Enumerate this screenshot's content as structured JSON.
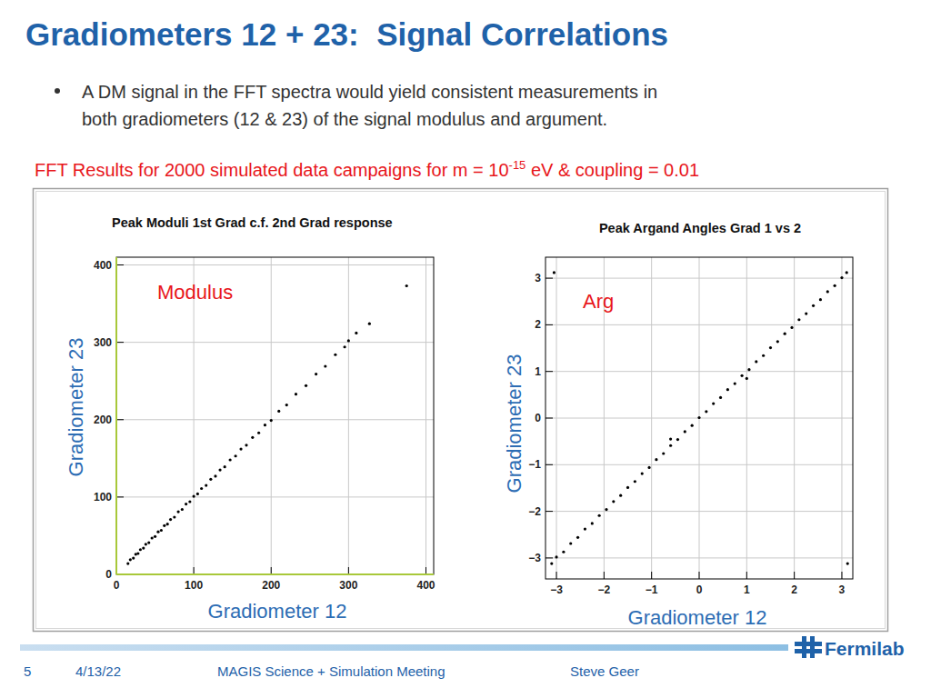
{
  "slide": {
    "title": "Gradiometers 12 + 23:  Signal Correlations",
    "bullet_lines": [
      "A DM signal in the FFT spectra would yield consistent measurements in",
      "both gradiometers (12 & 23) of the signal modulus and argument."
    ],
    "subtitle": {
      "before": "FFT Results for 2000 simulated data campaigns for m = 10",
      "superscript": "-15",
      "after": " eV & coupling = 0.01"
    },
    "footer": {
      "page": "5",
      "date": "4/13/22",
      "meeting": "MAGIS Science + Simulation Meeting",
      "author": "Steve Geer",
      "logo": "Fermilab"
    }
  },
  "chart_data": [
    {
      "type": "scatter",
      "title": "Peak Moduli 1st Grad c.f. 2nd Grad response",
      "x_label": "Gradiometer 12",
      "y_label": "Gradiometer 23",
      "annotation": "Modulus",
      "xlim": [
        0,
        410
      ],
      "ylim": [
        0,
        410
      ],
      "xticks": [
        0,
        100,
        200,
        300,
        400
      ],
      "yticks": [
        0,
        100,
        200,
        300,
        400
      ],
      "grid": true,
      "marker": "dot",
      "color": "#000000",
      "x": [
        15,
        18,
        22,
        25,
        28,
        31,
        35,
        38,
        42,
        46,
        50,
        54,
        58,
        62,
        66,
        70,
        75,
        80,
        85,
        90,
        95,
        100,
        105,
        110,
        116,
        122,
        128,
        134,
        140,
        147,
        154,
        161,
        168,
        176,
        184,
        192,
        200,
        210,
        220,
        232,
        245,
        258,
        270,
        283,
        295,
        300,
        310,
        327,
        375
      ],
      "values": [
        14,
        19,
        21,
        26,
        27,
        32,
        34,
        39,
        41,
        47,
        49,
        55,
        57,
        63,
        65,
        71,
        74,
        81,
        84,
        91,
        94,
        101,
        104,
        111,
        115,
        123,
        127,
        135,
        139,
        148,
        153,
        162,
        167,
        177,
        183,
        193,
        199,
        211,
        219,
        233,
        244,
        259,
        269,
        284,
        294,
        302,
        312,
        324,
        373
      ]
    },
    {
      "type": "scatter",
      "title": "Peak Argand Angles Grad 1 vs 2",
      "x_label": "Gradiometer 12",
      "y_label": "Gradiometer 23",
      "annotation": "Arg",
      "xlim": [
        -3.23,
        3.23
      ],
      "ylim": [
        -3.45,
        3.45
      ],
      "xticks": [
        -3,
        -2,
        -1,
        0,
        1,
        2,
        3
      ],
      "yticks": [
        -3,
        -2,
        -1,
        0,
        1,
        2,
        3
      ],
      "grid": true,
      "marker": "dot",
      "color": "#000000",
      "x": [
        -3.1,
        -3.0,
        -2.85,
        -2.7,
        -2.55,
        -2.4,
        -2.25,
        -2.1,
        -1.95,
        -1.8,
        -1.65,
        -1.5,
        -1.35,
        -1.2,
        -1.05,
        -0.9,
        -0.75,
        -0.6,
        -0.45,
        -0.3,
        -0.15,
        0.0,
        0.15,
        0.3,
        0.45,
        0.6,
        0.75,
        0.9,
        1.05,
        1.2,
        1.35,
        1.5,
        1.65,
        1.8,
        1.95,
        2.1,
        2.25,
        2.4,
        2.55,
        2.7,
        2.85,
        3.0,
        3.1,
        -3.05,
        3.12,
        -0.6,
        1.0
      ],
      "values": [
        -3.12,
        -2.98,
        -2.87,
        -2.69,
        -2.56,
        -2.38,
        -2.26,
        -2.09,
        -1.96,
        -1.79,
        -1.66,
        -1.49,
        -1.36,
        -1.19,
        -1.06,
        -0.89,
        -0.76,
        -0.59,
        -0.46,
        -0.29,
        -0.16,
        0.01,
        0.14,
        0.31,
        0.44,
        0.61,
        0.74,
        0.91,
        1.04,
        1.21,
        1.34,
        1.51,
        1.64,
        1.81,
        1.94,
        2.11,
        2.24,
        2.41,
        2.54,
        2.71,
        2.84,
        3.01,
        3.12,
        3.12,
        -3.12,
        -0.45,
        0.85
      ]
    }
  ]
}
